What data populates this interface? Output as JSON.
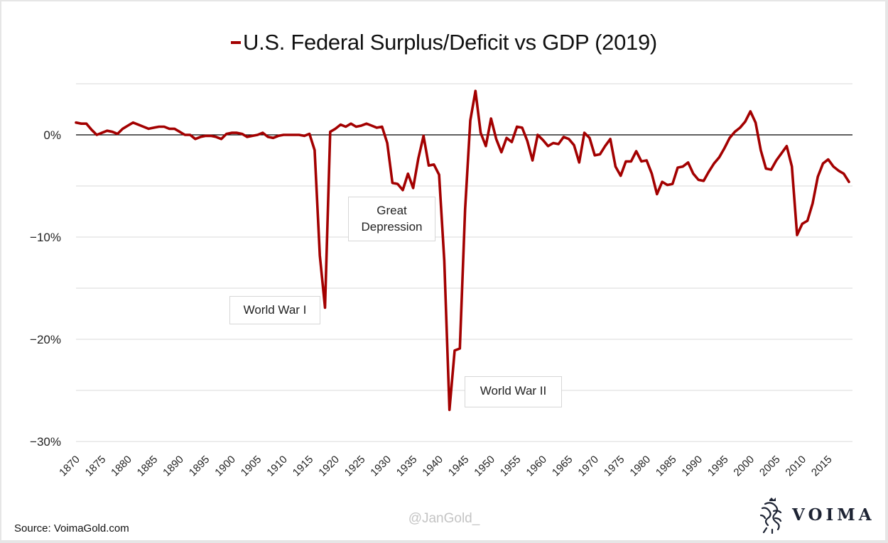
{
  "title": "U.S. Federal Surplus/Deficit vs GDP (2019)",
  "footer": {
    "source": "Source: VoimaGold.com",
    "handle": "@JanGold_",
    "brand": "VOIMA"
  },
  "colors": {
    "line": "#a30000",
    "zero_line": "#000000",
    "grid": "#d9d9d9"
  },
  "chart_data": {
    "type": "line",
    "title": "U.S. Federal Surplus/Deficit vs GDP (2019)",
    "xlabel": "",
    "ylabel": "",
    "xlim": [
      1870,
      2019
    ],
    "ylim": [
      -30,
      5
    ],
    "yticks": [
      0,
      -10,
      -20,
      -30
    ],
    "ytick_labels": [
      "0%",
      "-10%",
      "-20%",
      "-30%"
    ],
    "gridlines_at": [
      5,
      0,
      -5,
      -10,
      -15,
      -20,
      -25,
      -30
    ],
    "xticks": [
      1870,
      1875,
      1880,
      1885,
      1890,
      1895,
      1900,
      1905,
      1910,
      1915,
      1920,
      1925,
      1930,
      1935,
      1940,
      1945,
      1950,
      1955,
      1960,
      1965,
      1970,
      1975,
      1980,
      1985,
      1990,
      1995,
      2000,
      2005,
      2010,
      2015
    ],
    "legend": "inline-with-title",
    "series": [
      {
        "name": "U.S. Federal Surplus/Deficit vs GDP",
        "x": [
          1870,
          1871,
          1872,
          1873,
          1874,
          1875,
          1876,
          1877,
          1878,
          1879,
          1880,
          1881,
          1882,
          1883,
          1884,
          1885,
          1886,
          1887,
          1888,
          1889,
          1890,
          1891,
          1892,
          1893,
          1894,
          1895,
          1896,
          1897,
          1898,
          1899,
          1900,
          1901,
          1902,
          1903,
          1904,
          1905,
          1906,
          1907,
          1908,
          1909,
          1910,
          1911,
          1912,
          1913,
          1914,
          1915,
          1916,
          1917,
          1918,
          1919,
          1920,
          1921,
          1922,
          1923,
          1924,
          1925,
          1926,
          1927,
          1928,
          1929,
          1930,
          1931,
          1932,
          1933,
          1934,
          1935,
          1936,
          1937,
          1938,
          1939,
          1940,
          1941,
          1942,
          1943,
          1944,
          1945,
          1946,
          1947,
          1948,
          1949,
          1950,
          1951,
          1952,
          1953,
          1954,
          1955,
          1956,
          1957,
          1958,
          1959,
          1960,
          1961,
          1962,
          1963,
          1964,
          1965,
          1966,
          1967,
          1968,
          1969,
          1970,
          1971,
          1972,
          1973,
          1974,
          1975,
          1976,
          1977,
          1978,
          1979,
          1980,
          1981,
          1982,
          1983,
          1984,
          1985,
          1986,
          1987,
          1988,
          1989,
          1990,
          1991,
          1992,
          1993,
          1994,
          1995,
          1996,
          1997,
          1998,
          1999,
          2000,
          2001,
          2002,
          2003,
          2004,
          2005,
          2006,
          2007,
          2008,
          2009,
          2010,
          2011,
          2012,
          2013,
          2014,
          2015,
          2016,
          2017,
          2018,
          2019
        ],
        "values": [
          1.2,
          1.1,
          1.1,
          0.5,
          0.0,
          0.2,
          0.4,
          0.3,
          0.1,
          0.6,
          0.9,
          1.2,
          1.0,
          0.8,
          0.6,
          0.7,
          0.8,
          0.8,
          0.6,
          0.6,
          0.3,
          0.0,
          0.0,
          -0.4,
          -0.2,
          -0.1,
          -0.1,
          -0.2,
          -0.4,
          0.1,
          0.2,
          0.2,
          0.1,
          -0.2,
          -0.1,
          0.0,
          0.2,
          -0.2,
          -0.3,
          -0.1,
          0.0,
          0.0,
          0.0,
          0.0,
          -0.1,
          0.1,
          -1.5,
          -11.8,
          -16.9,
          0.3,
          0.6,
          1.0,
          0.8,
          1.1,
          0.8,
          0.9,
          1.1,
          0.9,
          0.7,
          0.8,
          -0.8,
          -4.7,
          -4.8,
          -5.4,
          -3.8,
          -5.2,
          -2.3,
          -0.1,
          -3.0,
          -2.9,
          -3.9,
          -12.3,
          -26.9,
          -21.1,
          -20.9,
          -7.3,
          1.4,
          4.3,
          0.2,
          -1.1,
          1.6,
          -0.4,
          -1.7,
          -0.3,
          -0.7,
          0.8,
          0.7,
          -0.6,
          -2.5,
          0.0,
          -0.5,
          -1.1,
          -0.8,
          -0.9,
          -0.2,
          -0.4,
          -1.0,
          -2.7,
          0.2,
          -0.3,
          -2.0,
          -1.9,
          -1.1,
          -0.4,
          -3.1,
          -4.0,
          -2.6,
          -2.6,
          -1.6,
          -2.6,
          -2.5,
          -3.8,
          -5.8,
          -4.6,
          -4.9,
          -4.8,
          -3.2,
          -3.1,
          -2.7,
          -3.8,
          -4.4,
          -4.5,
          -3.6,
          -2.8,
          -2.2,
          -1.3,
          -0.3,
          0.3,
          0.7,
          1.3,
          2.3,
          1.2,
          -1.5,
          -3.3,
          -3.4,
          -2.5,
          -1.8,
          -1.1,
          -3.1,
          -9.8,
          -8.7,
          -8.4,
          -6.7,
          -4.1,
          -2.8,
          -2.4,
          -3.1,
          -3.5,
          -3.8,
          -4.6
        ]
      }
    ],
    "annotations": [
      {
        "text": "World War I",
        "year": 1918
      },
      {
        "text": "Great Depression",
        "year": 1933
      },
      {
        "text": "World War II",
        "year": 1943
      }
    ]
  }
}
